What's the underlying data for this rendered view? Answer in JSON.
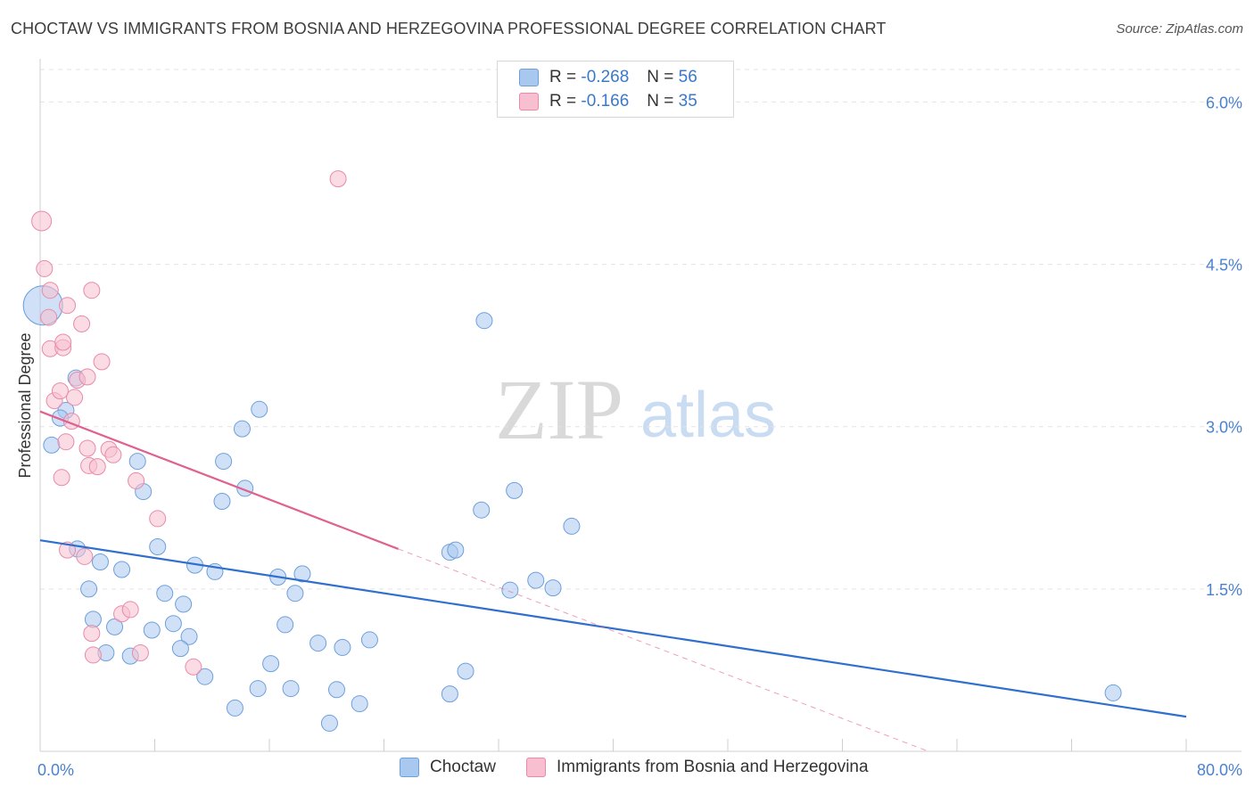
{
  "title": "CHOCTAW VS IMMIGRANTS FROM BOSNIA AND HERZEGOVINA PROFESSIONAL DEGREE CORRELATION CHART",
  "source": "Source: ZipAtlas.com",
  "watermark": {
    "zip": "ZIP",
    "atlas": "atlas"
  },
  "legend": {
    "r_label": "R =",
    "n_label": "N =",
    "rows": [
      {
        "r": "-0.268",
        "n": "56",
        "color": "#a9c8f0",
        "border": "#6d9fdb"
      },
      {
        "r": "-0.166",
        "n": "35",
        "color": "#f8bfd0",
        "border": "#e88aa8"
      }
    ]
  },
  "bottom_legend": [
    {
      "label": "Choctaw",
      "color": "#a9c8f0",
      "border": "#6d9fdb"
    },
    {
      "label": "Immigrants from Bosnia and Herzegovina",
      "color": "#f8bfd0",
      "border": "#e88aa8"
    }
  ],
  "chart_data": {
    "type": "scatter",
    "xlabel": "",
    "ylabel": "Professional Degree",
    "xlim": [
      0,
      80
    ],
    "ylim": [
      0,
      6.3
    ],
    "x_tick_labels": [
      "0.0%",
      "80.0%"
    ],
    "y_ticks": [
      1.5,
      3.0,
      4.5,
      6.0
    ],
    "y_tick_labels": [
      "1.5%",
      "3.0%",
      "4.5%",
      "6.0%"
    ],
    "series": [
      {
        "name": "Choctaw",
        "color": "#a9c8f0",
        "stroke": "#6d9fdb",
        "trend": {
          "x0": 0,
          "y0": 1.95,
          "x1": 80,
          "y1": 0.32,
          "color": "#2f6fce",
          "dashed_to": null
        },
        "points": [
          [
            0.2,
            4.12,
            22
          ],
          [
            2.5,
            3.45,
            9
          ],
          [
            1.8,
            3.15,
            9
          ],
          [
            1.4,
            3.08,
            9
          ],
          [
            0.8,
            2.83,
            9
          ],
          [
            6.8,
            2.68,
            9
          ],
          [
            7.2,
            2.4,
            9
          ],
          [
            12.8,
            2.68,
            9
          ],
          [
            15.3,
            3.16,
            9
          ],
          [
            14.1,
            2.98,
            9
          ],
          [
            12.7,
            2.31,
            9
          ],
          [
            14.3,
            2.43,
            9
          ],
          [
            30.8,
            2.23,
            9
          ],
          [
            28.6,
            1.84,
            9
          ],
          [
            29.0,
            1.86,
            9
          ],
          [
            33.1,
            2.41,
            9
          ],
          [
            37.1,
            2.08,
            9
          ],
          [
            31.0,
            3.98,
            9
          ],
          [
            2.6,
            1.87,
            9
          ],
          [
            4.2,
            1.75,
            9
          ],
          [
            5.7,
            1.68,
            9
          ],
          [
            8.2,
            1.89,
            9
          ],
          [
            10.8,
            1.72,
            9
          ],
          [
            12.2,
            1.66,
            9
          ],
          [
            16.6,
            1.61,
            9
          ],
          [
            18.3,
            1.64,
            9
          ],
          [
            17.8,
            1.46,
            9
          ],
          [
            32.8,
            1.49,
            9
          ],
          [
            34.6,
            1.58,
            9
          ],
          [
            35.8,
            1.51,
            9
          ],
          [
            3.4,
            1.5,
            9
          ],
          [
            8.7,
            1.46,
            9
          ],
          [
            10.0,
            1.36,
            9
          ],
          [
            3.7,
            1.22,
            9
          ],
          [
            5.2,
            1.15,
            9
          ],
          [
            7.8,
            1.12,
            9
          ],
          [
            9.3,
            1.18,
            9
          ],
          [
            10.4,
            1.06,
            9
          ],
          [
            17.1,
            1.17,
            9
          ],
          [
            9.8,
            0.95,
            9
          ],
          [
            19.4,
            1.0,
            9
          ],
          [
            21.1,
            0.96,
            9
          ],
          [
            23.0,
            1.03,
            9
          ],
          [
            4.6,
            0.91,
            9
          ],
          [
            6.3,
            0.88,
            9
          ],
          [
            11.5,
            0.69,
            9
          ],
          [
            16.1,
            0.81,
            9
          ],
          [
            29.7,
            0.74,
            9
          ],
          [
            15.2,
            0.58,
            9
          ],
          [
            17.5,
            0.58,
            9
          ],
          [
            20.7,
            0.57,
            9
          ],
          [
            28.6,
            0.53,
            9
          ],
          [
            13.6,
            0.4,
            9
          ],
          [
            22.3,
            0.44,
            9
          ],
          [
            20.2,
            0.26,
            9
          ],
          [
            74.9,
            0.54,
            9
          ]
        ]
      },
      {
        "name": "Immigrants from Bosnia and Herzegovina",
        "color": "#f8bfd0",
        "stroke": "#e88aa8",
        "trend": {
          "x0": 0,
          "y0": 3.14,
          "x1": 25,
          "y1": 1.87,
          "color": "#e0608f",
          "dashed_to": {
            "x": 62,
            "y": 0
          }
        },
        "points": [
          [
            0.1,
            4.9,
            11
          ],
          [
            0.3,
            4.46,
            9
          ],
          [
            0.7,
            4.26,
            9
          ],
          [
            0.6,
            4.01,
            9
          ],
          [
            0.7,
            3.72,
            9
          ],
          [
            1.6,
            3.73,
            9
          ],
          [
            1.6,
            3.78,
            9
          ],
          [
            1.9,
            4.12,
            9
          ],
          [
            2.9,
            3.95,
            9
          ],
          [
            3.6,
            4.26,
            9
          ],
          [
            4.3,
            3.6,
            9
          ],
          [
            1.0,
            3.24,
            9
          ],
          [
            1.4,
            3.33,
            9
          ],
          [
            2.4,
            3.27,
            9
          ],
          [
            2.6,
            3.43,
            9
          ],
          [
            3.3,
            3.46,
            9
          ],
          [
            1.8,
            2.86,
            9
          ],
          [
            2.2,
            3.05,
            9
          ],
          [
            3.3,
            2.8,
            9
          ],
          [
            4.8,
            2.79,
            9
          ],
          [
            3.4,
            2.64,
            9
          ],
          [
            4.0,
            2.63,
            9
          ],
          [
            5.1,
            2.74,
            9
          ],
          [
            1.5,
            2.53,
            9
          ],
          [
            6.7,
            2.5,
            9
          ],
          [
            8.2,
            2.15,
            9
          ],
          [
            1.9,
            1.86,
            9
          ],
          [
            3.1,
            1.8,
            9
          ],
          [
            5.7,
            1.27,
            9
          ],
          [
            6.3,
            1.31,
            9
          ],
          [
            3.6,
            1.09,
            9
          ],
          [
            3.7,
            0.89,
            9
          ],
          [
            7.0,
            0.91,
            9
          ],
          [
            10.7,
            0.78,
            9
          ],
          [
            20.8,
            5.29,
            9
          ]
        ]
      }
    ]
  }
}
